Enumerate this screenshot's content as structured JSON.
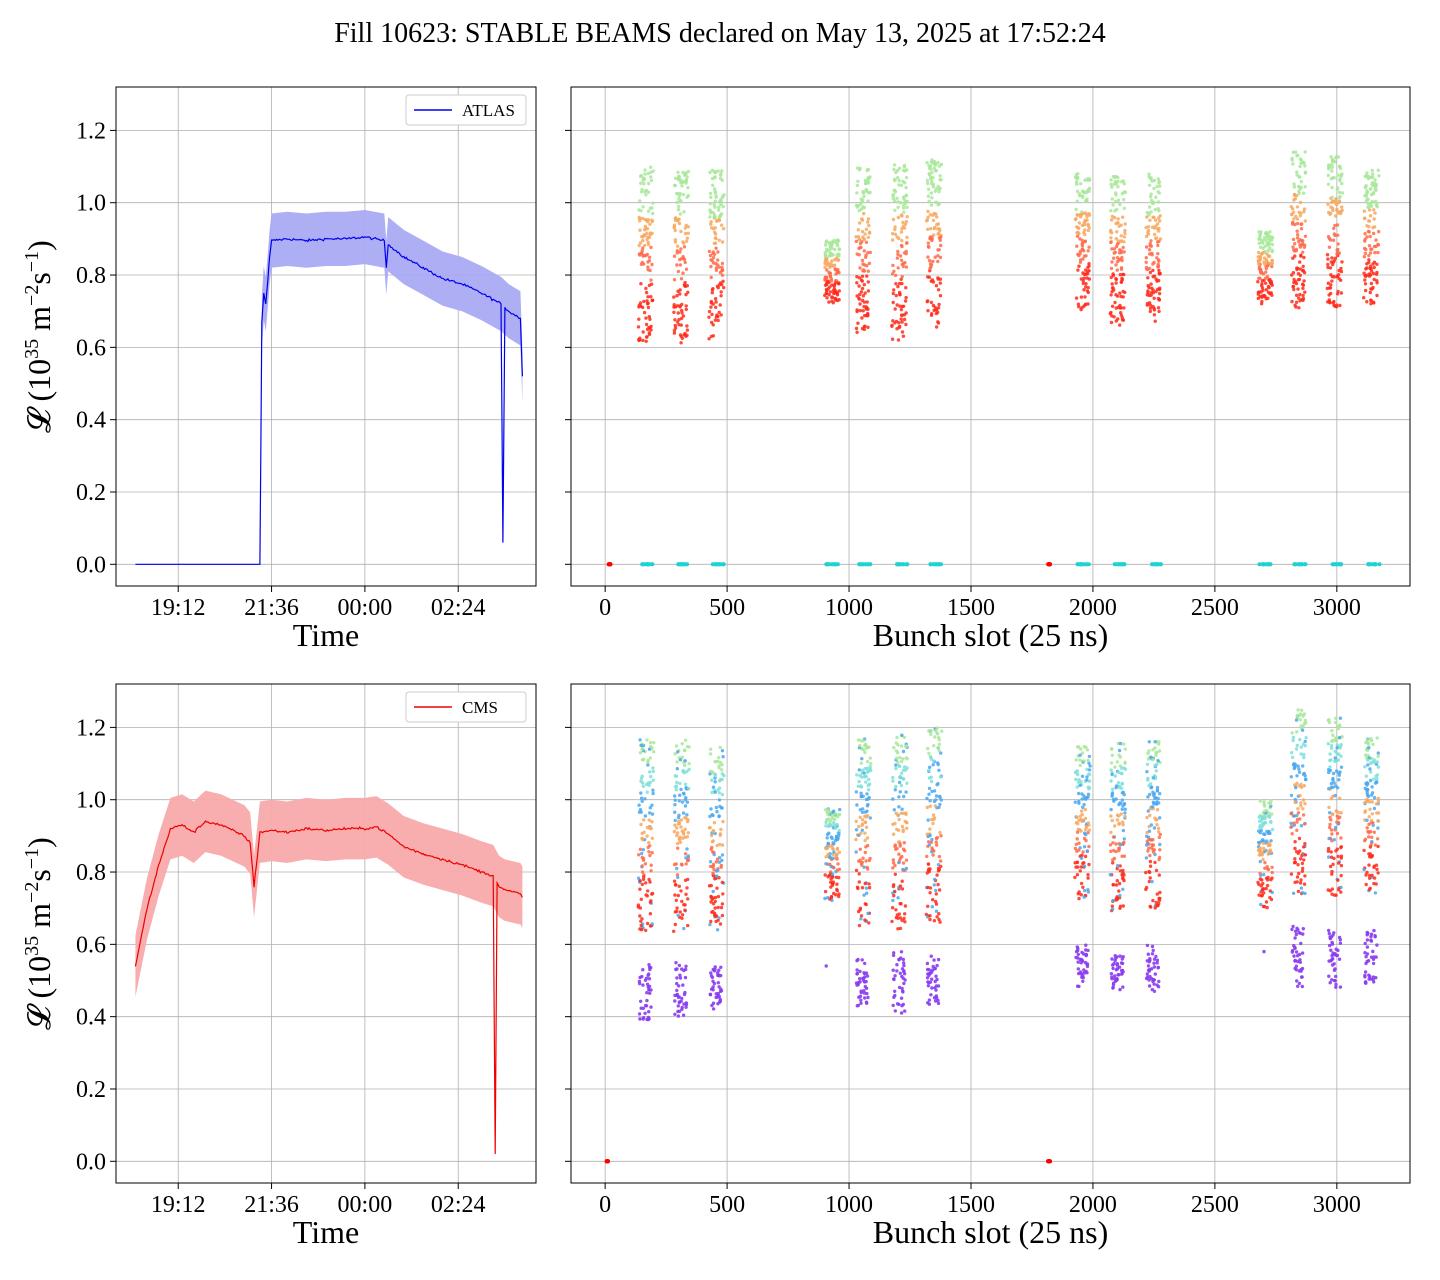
{
  "figure_title": "Fill 10623: STABLE BEAMS declared on May 13, 2025 at 17:52:24",
  "colors": {
    "atlas_line": "#0000ee",
    "atlas_band": "#aaaaf4",
    "cms_line": "#ee0000",
    "cms_band": "#f8aaaa",
    "grid": "#b0b0b0",
    "scatter_palette": [
      "#ff2a1a",
      "#ff6b4a",
      "#f7a85f",
      "#a8e89a",
      "#7ee0d8",
      "#4aa8f0",
      "#8a3cf0"
    ],
    "zero_marker": "#1fd2d2",
    "zero_marker_red": "#ff0000"
  },
  "chart_data": [
    {
      "id": "atlas-time",
      "type": "line",
      "title": "",
      "xlabel": "Time",
      "ylabel_main": "𝓛 (10",
      "ylabel_sup1": "35",
      "ylabel_mid": " m",
      "ylabel_sup2": "−2",
      "ylabel_mid2": "s",
      "ylabel_sup3": "−1",
      "ylabel_end": ")",
      "legend": "ATLAS",
      "legend_position": "top-right",
      "grid": true,
      "xlim": [
        17.6,
        28.4
      ],
      "ylim": [
        -0.06,
        1.32
      ],
      "x_ticks": [
        19.2,
        21.6,
        24.0,
        26.4
      ],
      "x_tick_labels": [
        "19:12",
        "21:36",
        "00:00",
        "02:24"
      ],
      "y_ticks": [
        0.0,
        0.2,
        0.4,
        0.6,
        0.8,
        1.0,
        1.2
      ],
      "y_tick_labels": [
        "0.0",
        "0.2",
        "0.4",
        "0.6",
        "0.8",
        "1.0",
        "1.2"
      ],
      "band_halfwidth": 0.075,
      "series": [
        {
          "name": "ATLAS",
          "x": [
            18.1,
            20.9,
            21.3,
            21.35,
            21.4,
            21.45,
            21.5,
            21.55,
            21.6,
            22.0,
            22.5,
            23.0,
            23.5,
            24.0,
            24.5,
            24.55,
            24.6,
            25.0,
            25.5,
            26.0,
            26.5,
            27.0,
            27.5,
            27.55,
            27.6,
            27.7,
            28.0,
            28.05
          ],
          "y": [
            0.0,
            0.0,
            0.0,
            0.67,
            0.75,
            0.72,
            0.78,
            0.85,
            0.895,
            0.9,
            0.895,
            0.9,
            0.9,
            0.905,
            0.895,
            0.82,
            0.885,
            0.85,
            0.82,
            0.79,
            0.775,
            0.75,
            0.72,
            0.06,
            0.71,
            0.7,
            0.68,
            0.52
          ]
        }
      ]
    },
    {
      "id": "atlas-bunch",
      "type": "scatter",
      "title": "",
      "xlabel": "Bunch slot (25 ns)",
      "grid": true,
      "xlim": [
        -140,
        3300
      ],
      "ylim": [
        -0.06,
        1.32
      ],
      "x_ticks": [
        0,
        500,
        1000,
        1500,
        2000,
        2500,
        3000
      ],
      "x_tick_labels": [
        "0",
        "500",
        "1000",
        "1500",
        "2000",
        "2500",
        "3000"
      ],
      "y_ticks": [
        0.0,
        0.2,
        0.4,
        0.6,
        0.8,
        1.0,
        1.2
      ],
      "trains": [
        {
          "x": 165,
          "low": 0.61,
          "high": 1.1
        },
        {
          "x": 310,
          "low": 0.61,
          "high": 1.1
        },
        {
          "x": 455,
          "low": 0.62,
          "high": 1.09
        },
        {
          "x": 930,
          "low": 0.72,
          "high": 0.9
        },
        {
          "x": 1055,
          "low": 0.64,
          "high": 1.1
        },
        {
          "x": 1205,
          "low": 0.62,
          "high": 1.11
        },
        {
          "x": 1345,
          "low": 0.65,
          "high": 1.12
        },
        {
          "x": 1955,
          "low": 0.7,
          "high": 1.08
        },
        {
          "x": 2100,
          "low": 0.66,
          "high": 1.08
        },
        {
          "x": 2245,
          "low": 0.67,
          "high": 1.08
        },
        {
          "x": 2705,
          "low": 0.72,
          "high": 0.92
        },
        {
          "x": 2840,
          "low": 0.7,
          "high": 1.15
        },
        {
          "x": 2990,
          "low": 0.71,
          "high": 1.13
        },
        {
          "x": 3140,
          "low": 0.72,
          "high": 1.09
        }
      ],
      "zero_clusters": [
        {
          "x": 175,
          "color": "cyan"
        },
        {
          "x": 320,
          "color": "cyan"
        },
        {
          "x": 465,
          "color": "cyan"
        },
        {
          "x": 930,
          "color": "cyan"
        },
        {
          "x": 1065,
          "color": "cyan"
        },
        {
          "x": 1215,
          "color": "cyan"
        },
        {
          "x": 1355,
          "color": "cyan"
        },
        {
          "x": 1960,
          "color": "cyan"
        },
        {
          "x": 2110,
          "color": "cyan"
        },
        {
          "x": 2255,
          "color": "cyan"
        },
        {
          "x": 2705,
          "color": "cyan"
        },
        {
          "x": 2850,
          "color": "cyan"
        },
        {
          "x": 3000,
          "color": "cyan"
        },
        {
          "x": 3150,
          "color": "cyan"
        },
        {
          "x": 18,
          "color": "red"
        },
        {
          "x": 1820,
          "color": "red"
        }
      ]
    },
    {
      "id": "cms-time",
      "type": "line",
      "title": "",
      "xlabel": "Time",
      "ylabel_main": "𝓛 (10",
      "ylabel_sup1": "35",
      "ylabel_mid": " m",
      "ylabel_sup2": "−2",
      "ylabel_mid2": "s",
      "ylabel_sup3": "−1",
      "ylabel_end": ")",
      "legend": "CMS",
      "legend_position": "top-right",
      "grid": true,
      "xlim": [
        17.6,
        28.4
      ],
      "ylim": [
        -0.06,
        1.32
      ],
      "x_ticks": [
        19.2,
        21.6,
        24.0,
        26.4
      ],
      "x_tick_labels": [
        "19:12",
        "21:36",
        "00:00",
        "02:24"
      ],
      "y_ticks": [
        0.0,
        0.2,
        0.4,
        0.6,
        0.8,
        1.0,
        1.2
      ],
      "y_tick_labels": [
        "0.0",
        "0.2",
        "0.4",
        "0.6",
        "0.8",
        "1.0",
        "1.2"
      ],
      "band_halfwidth": 0.085,
      "series": [
        {
          "name": "CMS",
          "x": [
            18.1,
            18.4,
            18.7,
            19.0,
            19.3,
            19.6,
            19.9,
            20.3,
            20.6,
            20.9,
            21.05,
            21.15,
            21.3,
            21.6,
            22.0,
            22.5,
            23.0,
            23.5,
            24.0,
            24.3,
            24.6,
            25.0,
            25.5,
            26.0,
            26.5,
            27.0,
            27.3,
            27.35,
            27.4,
            27.45,
            27.6,
            28.0,
            28.05
          ],
          "y": [
            0.54,
            0.7,
            0.82,
            0.92,
            0.93,
            0.91,
            0.94,
            0.93,
            0.915,
            0.9,
            0.88,
            0.76,
            0.91,
            0.915,
            0.91,
            0.92,
            0.915,
            0.92,
            0.92,
            0.925,
            0.905,
            0.87,
            0.85,
            0.835,
            0.82,
            0.8,
            0.79,
            0.02,
            0.77,
            0.76,
            0.75,
            0.74,
            0.73
          ]
        }
      ]
    },
    {
      "id": "cms-bunch",
      "type": "scatter",
      "title": "",
      "xlabel": "Bunch slot (25 ns)",
      "grid": true,
      "xlim": [
        -140,
        3300
      ],
      "ylim": [
        -0.06,
        1.32
      ],
      "x_ticks": [
        0,
        500,
        1000,
        1500,
        2000,
        2500,
        3000
      ],
      "x_tick_labels": [
        "0",
        "500",
        "1000",
        "1500",
        "2000",
        "2500",
        "3000"
      ],
      "y_ticks": [
        0.0,
        0.2,
        0.4,
        0.6,
        0.8,
        1.0,
        1.2
      ],
      "trains": [
        {
          "x": 165,
          "low": 0.63,
          "high": 1.17
        },
        {
          "x": 310,
          "low": 0.63,
          "high": 1.17
        },
        {
          "x": 455,
          "low": 0.64,
          "high": 1.15
        },
        {
          "x": 930,
          "low": 0.72,
          "high": 0.98
        },
        {
          "x": 1055,
          "low": 0.65,
          "high": 1.17
        },
        {
          "x": 1205,
          "low": 0.64,
          "high": 1.18
        },
        {
          "x": 1345,
          "low": 0.66,
          "high": 1.2
        },
        {
          "x": 1955,
          "low": 0.72,
          "high": 1.15
        },
        {
          "x": 2100,
          "low": 0.69,
          "high": 1.16
        },
        {
          "x": 2245,
          "low": 0.69,
          "high": 1.17
        },
        {
          "x": 2705,
          "low": 0.7,
          "high": 1.0
        },
        {
          "x": 2840,
          "low": 0.74,
          "high": 1.25
        },
        {
          "x": 2990,
          "low": 0.73,
          "high": 1.23
        },
        {
          "x": 3140,
          "low": 0.74,
          "high": 1.18
        }
      ],
      "purple_clusters": [
        {
          "x": 165,
          "low": 0.39,
          "high": 0.55
        },
        {
          "x": 310,
          "low": 0.4,
          "high": 0.55
        },
        {
          "x": 455,
          "low": 0.42,
          "high": 0.55
        },
        {
          "x": 930,
          "low": 0.54,
          "high": 0.54
        },
        {
          "x": 1055,
          "low": 0.43,
          "high": 0.56
        },
        {
          "x": 1205,
          "low": 0.41,
          "high": 0.58
        },
        {
          "x": 1345,
          "low": 0.43,
          "high": 0.57
        },
        {
          "x": 1955,
          "low": 0.48,
          "high": 0.61
        },
        {
          "x": 2100,
          "low": 0.47,
          "high": 0.57
        },
        {
          "x": 2245,
          "low": 0.47,
          "high": 0.6
        },
        {
          "x": 2705,
          "low": 0.58,
          "high": 0.58
        },
        {
          "x": 2840,
          "low": 0.48,
          "high": 0.65
        },
        {
          "x": 2990,
          "low": 0.48,
          "high": 0.64
        },
        {
          "x": 3140,
          "low": 0.49,
          "high": 0.64
        }
      ],
      "zero_clusters": [
        {
          "x": 8,
          "color": "red"
        },
        {
          "x": 1820,
          "color": "red"
        }
      ]
    }
  ]
}
